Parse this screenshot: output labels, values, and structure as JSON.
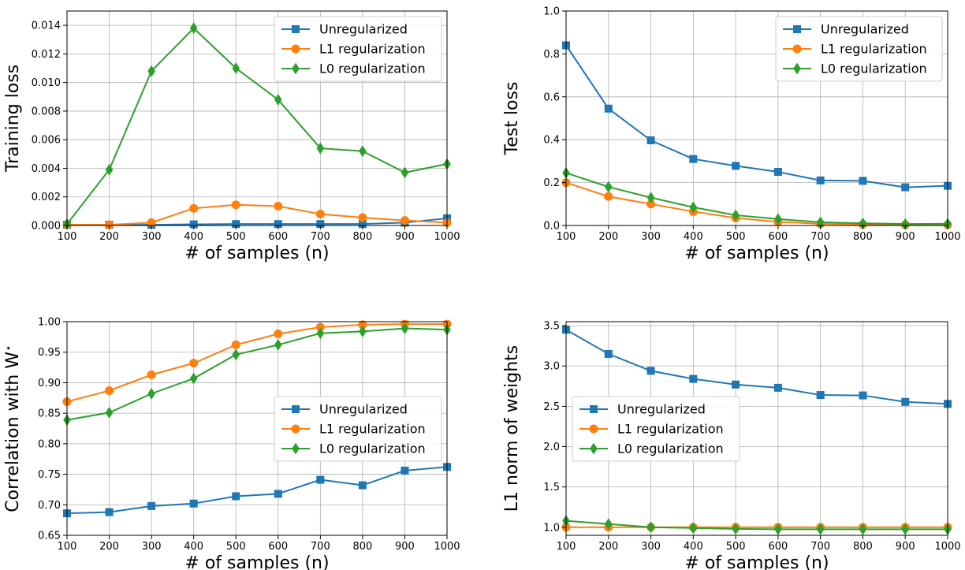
{
  "chart_data": [
    {
      "type": "line",
      "xlabel": "# of samples (n)",
      "ylabel": "Training loss",
      "ylabel_sup": "",
      "x": [
        100,
        200,
        300,
        400,
        500,
        600,
        700,
        800,
        900,
        1000
      ],
      "xlim": [
        100,
        1000
      ],
      "ylim": [
        0,
        0.015
      ],
      "xticks": [
        "100",
        "200",
        "300",
        "400",
        "500",
        "600",
        "700",
        "800",
        "900",
        "1000"
      ],
      "yticks": [
        {
          "value": 0,
          "label": "0.000"
        },
        {
          "value": 0.002,
          "label": "0.002"
        },
        {
          "value": 0.004,
          "label": "0.004"
        },
        {
          "value": 0.006,
          "label": "0.006"
        },
        {
          "value": 0.008,
          "label": "0.008"
        },
        {
          "value": 0.01,
          "label": "0.010"
        },
        {
          "value": 0.012,
          "label": "0.012"
        },
        {
          "value": 0.014,
          "label": "0.014"
        }
      ],
      "grid": true,
      "legend_position": "top-right",
      "series": [
        {
          "name": "Unregularized",
          "color": "#1f77b4",
          "marker": "square",
          "values": [
            5e-05,
            5e-05,
            5e-05,
            8e-05,
            0.0001,
            0.0001,
            0.0001,
            0.0001,
            0.0002,
            0.0005
          ]
        },
        {
          "name": "L1 regularization",
          "color": "#ff7f0e",
          "marker": "circle",
          "values": [
            5e-05,
            5e-05,
            0.0002,
            0.0012,
            0.00145,
            0.00135,
            0.0008,
            0.00055,
            0.00035,
            0.0002
          ]
        },
        {
          "name": "L0 regularization",
          "color": "#2ca02c",
          "marker": "diamond",
          "values": [
            0.0001,
            0.0039,
            0.0108,
            0.0138,
            0.011,
            0.0088,
            0.0054,
            0.0052,
            0.0037,
            0.0043
          ]
        }
      ]
    },
    {
      "type": "line",
      "xlabel": "# of samples (n)",
      "ylabel": "Test loss",
      "ylabel_sup": "",
      "x": [
        100,
        200,
        300,
        400,
        500,
        600,
        700,
        800,
        900,
        1000
      ],
      "xlim": [
        100,
        1000
      ],
      "ylim": [
        0,
        1.0
      ],
      "xticks": [
        "100",
        "200",
        "300",
        "400",
        "500",
        "600",
        "700",
        "800",
        "900",
        "1000"
      ],
      "yticks": [
        {
          "value": 0,
          "label": "0.0"
        },
        {
          "value": 0.2,
          "label": "0.2"
        },
        {
          "value": 0.4,
          "label": "0.4"
        },
        {
          "value": 0.6,
          "label": "0.6"
        },
        {
          "value": 0.8,
          "label": "0.8"
        },
        {
          "value": 1.0,
          "label": "1.0"
        }
      ],
      "grid": true,
      "legend_position": "top-right",
      "series": [
        {
          "name": "Unregularized",
          "color": "#1f77b4",
          "marker": "square",
          "values": [
            0.84,
            0.545,
            0.397,
            0.31,
            0.278,
            0.25,
            0.21,
            0.208,
            0.178,
            0.185
          ]
        },
        {
          "name": "L1 regularization",
          "color": "#ff7f0e",
          "marker": "circle",
          "values": [
            0.2,
            0.135,
            0.1,
            0.065,
            0.035,
            0.017,
            0.008,
            0.005,
            0.003,
            0.003
          ]
        },
        {
          "name": "L0 regularization",
          "color": "#2ca02c",
          "marker": "diamond",
          "values": [
            0.245,
            0.18,
            0.13,
            0.085,
            0.048,
            0.03,
            0.015,
            0.01,
            0.007,
            0.008
          ]
        }
      ]
    },
    {
      "type": "line",
      "xlabel": "# of samples (n)",
      "ylabel": "Correlation with W",
      "ylabel_sup": "⋆",
      "x": [
        100,
        200,
        300,
        400,
        500,
        600,
        700,
        800,
        900,
        1000
      ],
      "xlim": [
        100,
        1000
      ],
      "ylim": [
        0.65,
        1.0
      ],
      "xticks": [
        "100",
        "200",
        "300",
        "400",
        "500",
        "600",
        "700",
        "800",
        "900",
        "1000"
      ],
      "yticks": [
        {
          "value": 0.65,
          "label": "0.65"
        },
        {
          "value": 0.7,
          "label": "0.70"
        },
        {
          "value": 0.75,
          "label": "0.75"
        },
        {
          "value": 0.8,
          "label": "0.80"
        },
        {
          "value": 0.85,
          "label": "0.85"
        },
        {
          "value": 0.9,
          "label": "0.90"
        },
        {
          "value": 0.95,
          "label": "0.95"
        },
        {
          "value": 1.0,
          "label": "1.00"
        }
      ],
      "grid": true,
      "legend_position": "center-right",
      "series": [
        {
          "name": "Unregularized",
          "color": "#1f77b4",
          "marker": "square",
          "values": [
            0.686,
            0.688,
            0.698,
            0.702,
            0.714,
            0.718,
            0.741,
            0.732,
            0.756,
            0.762
          ]
        },
        {
          "name": "L1 regularization",
          "color": "#ff7f0e",
          "marker": "circle",
          "values": [
            0.869,
            0.887,
            0.913,
            0.932,
            0.962,
            0.98,
            0.991,
            0.995,
            0.996,
            0.996
          ]
        },
        {
          "name": "L0 regularization",
          "color": "#2ca02c",
          "marker": "diamond",
          "values": [
            0.839,
            0.851,
            0.882,
            0.907,
            0.946,
            0.962,
            0.981,
            0.984,
            0.989,
            0.987
          ]
        }
      ]
    },
    {
      "type": "line",
      "xlabel": "# of samples (n)",
      "ylabel": "L1 norm of weights",
      "ylabel_sup": "",
      "x": [
        100,
        200,
        300,
        400,
        500,
        600,
        700,
        800,
        900,
        1000
      ],
      "xlim": [
        100,
        1000
      ],
      "ylim": [
        0.9,
        3.55
      ],
      "xticks": [
        "100",
        "200",
        "300",
        "400",
        "500",
        "600",
        "700",
        "800",
        "900",
        "1000"
      ],
      "yticks": [
        {
          "value": 1.0,
          "label": "1.0"
        },
        {
          "value": 1.5,
          "label": "1.5"
        },
        {
          "value": 2.0,
          "label": "2.0"
        },
        {
          "value": 2.5,
          "label": "2.5"
        },
        {
          "value": 3.0,
          "label": "3.0"
        },
        {
          "value": 3.5,
          "label": "3.5"
        }
      ],
      "grid": true,
      "legend_position": "center-left",
      "series": [
        {
          "name": "Unregularized",
          "color": "#1f77b4",
          "marker": "square",
          "values": [
            3.45,
            3.15,
            2.94,
            2.84,
            2.77,
            2.73,
            2.64,
            2.635,
            2.555,
            2.53
          ]
        },
        {
          "name": "L1 regularization",
          "color": "#ff7f0e",
          "marker": "circle",
          "values": [
            1.0,
            1.0,
            1.0,
            1.0,
            1.0,
            1.0,
            1.0,
            1.0,
            1.0,
            1.0
          ]
        },
        {
          "name": "L0 regularization",
          "color": "#2ca02c",
          "marker": "diamond",
          "values": [
            1.08,
            1.04,
            1.0,
            0.99,
            0.98,
            0.975,
            0.975,
            0.975,
            0.975,
            0.975
          ]
        }
      ]
    }
  ]
}
